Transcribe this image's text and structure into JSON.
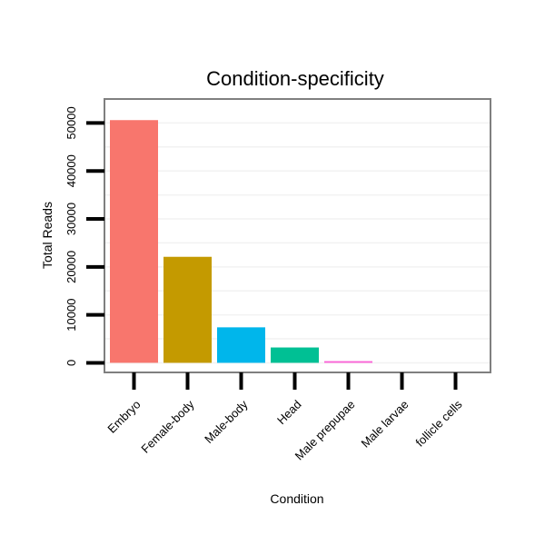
{
  "chart_data": {
    "type": "bar",
    "title": "Condition-specificity",
    "xlabel": "Condition",
    "ylabel": "Total Reads",
    "categories": [
      "Embryo",
      "Female-body",
      "Male-body",
      "Head",
      "Male prepupae",
      "Male larvae",
      "follicle cells"
    ],
    "values": [
      50600,
      22100,
      7400,
      3200,
      350,
      0,
      0
    ],
    "colors": [
      "#F8766D",
      "#C49A00",
      "#00B6EB",
      "#00C094",
      "#FB61D7",
      "#A58AFF",
      "#53B400"
    ],
    "ylim": [
      -2000,
      55000
    ],
    "yticks": [
      0,
      10000,
      20000,
      30000,
      40000,
      50000
    ],
    "ytick_labels": [
      "0",
      "10000",
      "20000",
      "30000",
      "40000",
      "50000"
    ],
    "grid": true,
    "legend": "none"
  }
}
